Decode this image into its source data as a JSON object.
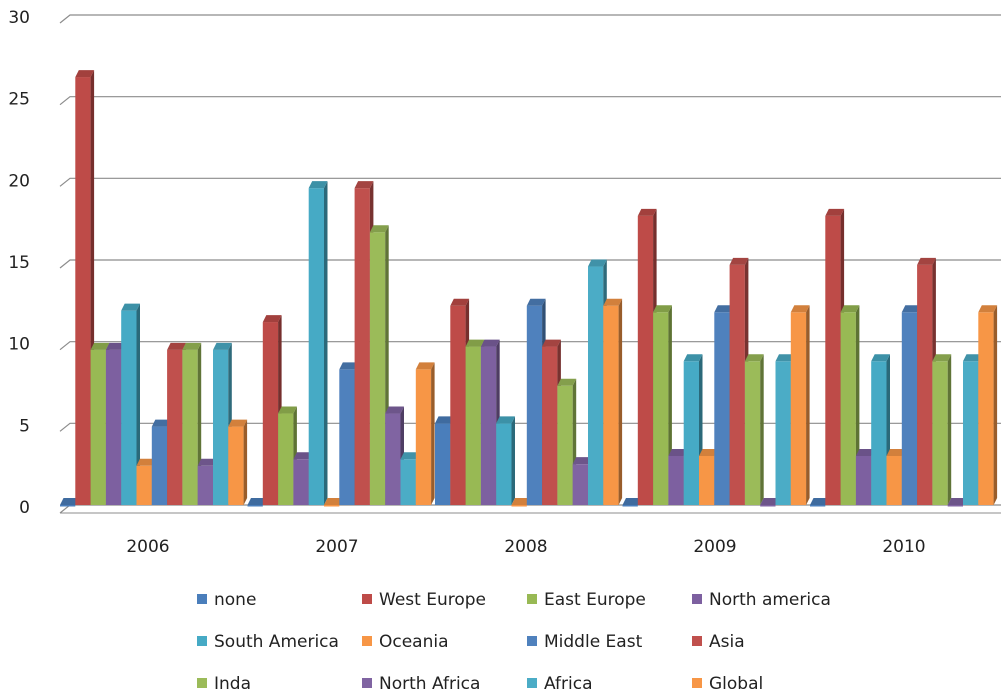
{
  "chart_data": {
    "type": "bar",
    "categories": [
      "2006",
      "2007",
      "2008",
      "2009",
      "2010"
    ],
    "ylim": [
      0,
      30
    ],
    "yticks": [
      0,
      5,
      10,
      15,
      20,
      25,
      30
    ],
    "grid": true,
    "legend_position": "bottom",
    "series": [
      {
        "name": "none",
        "color": "#4a7ebb",
        "values": [
          0,
          0,
          5,
          0,
          0
        ]
      },
      {
        "name": "West Europe",
        "color": "#be4b48",
        "values": [
          26.2,
          11.2,
          12.2,
          17.7,
          17.7
        ]
      },
      {
        "name": "East Europe",
        "color": "#98b954",
        "values": [
          9.5,
          5.6,
          9.7,
          11.8,
          11.8
        ]
      },
      {
        "name": "North america",
        "color": "#7d60a0",
        "values": [
          9.5,
          2.8,
          9.7,
          3,
          3
        ]
      },
      {
        "name": "South America",
        "color": "#46aac5",
        "values": [
          11.9,
          19.4,
          5,
          8.8,
          8.8
        ]
      },
      {
        "name": "Oceania",
        "color": "#f79646",
        "values": [
          2.4,
          0,
          0,
          3,
          3
        ]
      },
      {
        "name": "Middle East",
        "color": "#4f81bd",
        "values": [
          4.8,
          8.3,
          12.2,
          11.8,
          11.8
        ]
      },
      {
        "name": "Asia",
        "color": "#c0504d",
        "values": [
          9.5,
          19.4,
          9.7,
          14.7,
          14.7
        ]
      },
      {
        "name": "Inda",
        "color": "#9bbb59",
        "values": [
          9.5,
          16.7,
          7.3,
          8.8,
          8.8
        ]
      },
      {
        "name": "North Africa",
        "color": "#8064a2",
        "values": [
          2.4,
          5.6,
          2.5,
          0,
          0
        ]
      },
      {
        "name": "Africa",
        "color": "#4bacc6",
        "values": [
          9.5,
          2.8,
          14.6,
          8.8,
          8.8
        ]
      },
      {
        "name": "Global",
        "color": "#f79646",
        "values": [
          4.8,
          8.3,
          12.2,
          11.8,
          11.8
        ]
      }
    ]
  }
}
